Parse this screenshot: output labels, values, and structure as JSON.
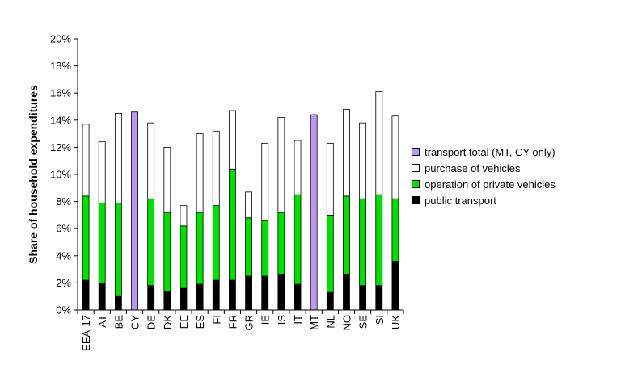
{
  "chart_data": {
    "type": "bar",
    "stacked": true,
    "ylabel": "Share of household expenditures",
    "xlabel": "",
    "ylim": [
      0,
      20
    ],
    "yticks": [
      "0%",
      "2%",
      "4%",
      "6%",
      "8%",
      "10%",
      "12%",
      "14%",
      "16%",
      "18%",
      "20%"
    ],
    "grid": false,
    "legend_position": "right",
    "categories": [
      "EEA-17",
      "AT",
      "BE",
      "CY",
      "DE",
      "DK",
      "EE",
      "ES",
      "FI",
      "FR",
      "GR",
      "IE",
      "IS",
      "IT",
      "MT",
      "NL",
      "NO",
      "SE",
      "SI",
      "UK"
    ],
    "series": [
      {
        "name": "public transport",
        "color": "#000000",
        "values": [
          2.2,
          2.0,
          1.0,
          0,
          1.8,
          1.4,
          1.6,
          1.9,
          2.2,
          2.2,
          2.5,
          2.5,
          2.6,
          1.9,
          0,
          1.3,
          2.6,
          1.8,
          1.8,
          3.6
        ]
      },
      {
        "name": "operation of private vehicles",
        "color": "#00e000",
        "values": [
          6.2,
          5.9,
          6.9,
          0,
          6.4,
          5.8,
          4.6,
          5.3,
          5.5,
          8.2,
          4.3,
          4.1,
          4.6,
          6.6,
          0,
          5.7,
          5.8,
          6.4,
          6.7,
          4.6
        ]
      },
      {
        "name": "purchase of vehicles",
        "color": "#ffffff",
        "values": [
          5.3,
          4.5,
          6.6,
          0,
          5.6,
          4.8,
          1.5,
          5.8,
          5.5,
          4.3,
          1.9,
          5.7,
          7.0,
          4.0,
          0,
          5.3,
          6.4,
          5.6,
          7.6,
          6.1
        ]
      },
      {
        "name": "transport total (MT, CY only)",
        "color": "#bb99ee",
        "values": [
          0,
          0,
          0,
          14.6,
          0,
          0,
          0,
          0,
          0,
          0,
          0,
          0,
          0,
          0,
          14.4,
          0,
          0,
          0,
          0,
          0
        ]
      }
    ],
    "legend_order": [
      "transport total (MT, CY only)",
      "purchase of vehicles",
      "operation of private vehicles",
      "public transport"
    ]
  }
}
